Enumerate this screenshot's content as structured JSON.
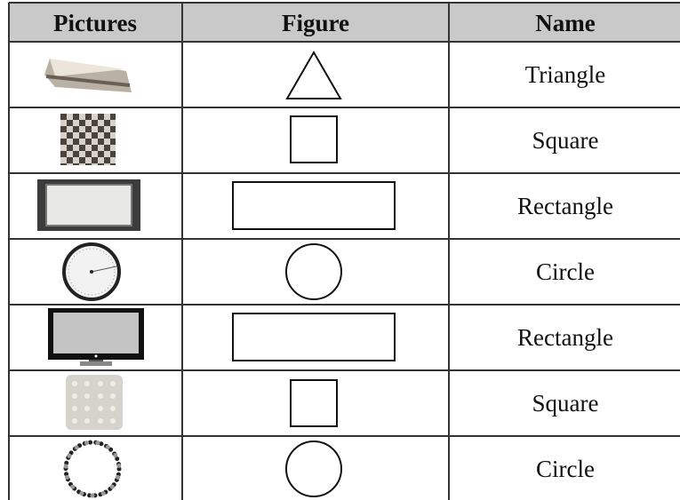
{
  "table": {
    "header": [
      "Pictures",
      "Figure",
      "Name"
    ],
    "rows": [
      {
        "name": "Triangle"
      },
      {
        "name": "Square"
      },
      {
        "name": "Rectangle"
      },
      {
        "name": "Circle"
      },
      {
        "name": "Rectangle"
      },
      {
        "name": "Square"
      },
      {
        "name": "Circle"
      }
    ]
  }
}
